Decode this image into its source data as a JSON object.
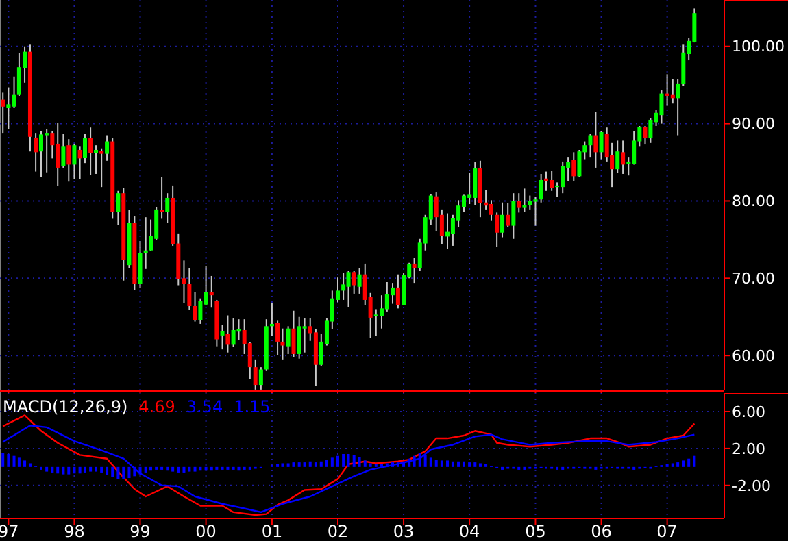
{
  "chart_data": [
    {
      "type": "candlestick",
      "xlim": [
        "1996-11-15",
        "2007-11-10"
      ],
      "ylim": [
        55.5,
        106
      ],
      "yticks": [
        {
          "value": 60,
          "label": "60.00"
        },
        {
          "value": 70,
          "label": "70.00"
        },
        {
          "value": 80,
          "label": "80.00"
        },
        {
          "value": 90,
          "label": "90.00"
        },
        {
          "value": 100,
          "label": "100.00"
        }
      ],
      "xticks": [
        {
          "value": "1997-01",
          "label": null
        },
        {
          "value": "1998-01",
          "label": null
        },
        {
          "value": "1999-01",
          "label": null
        },
        {
          "value": "2000-01",
          "label": null
        },
        {
          "value": "2001-01",
          "label": null
        },
        {
          "value": "2002-01",
          "label": null
        },
        {
          "value": "2003-01",
          "label": null
        },
        {
          "value": "2004-01",
          "label": null
        },
        {
          "value": "2005-01",
          "label": null
        },
        {
          "value": "2006-01",
          "label": null
        },
        {
          "value": "2007-01",
          "label": null
        }
      ],
      "tick_labels": "y",
      "grid": true,
      "x": [
        "1996-12",
        "1997-01",
        "1997-02",
        "1997-03",
        "1997-04",
        "1997-05",
        "1997-06",
        "1997-07",
        "1997-08",
        "1997-09",
        "1997-10",
        "1997-11",
        "1997-12",
        "1998-01",
        "1998-02",
        "1998-03",
        "1998-04",
        "1998-05",
        "1998-06",
        "1998-07",
        "1998-08",
        "1998-09",
        "1998-10",
        "1998-11",
        "1998-12",
        "1999-01",
        "1999-02",
        "1999-03",
        "1999-04",
        "1999-05",
        "1999-06",
        "1999-07",
        "1999-08",
        "1999-09",
        "1999-10",
        "1999-11",
        "1999-12",
        "2000-01",
        "2000-02",
        "2000-03",
        "2000-04",
        "2000-05",
        "2000-06",
        "2000-07",
        "2000-08",
        "2000-09",
        "2000-10",
        "2000-11",
        "2000-12",
        "2001-01",
        "2001-02",
        "2001-03",
        "2001-04",
        "2001-05",
        "2001-06",
        "2001-07",
        "2001-08",
        "2001-09",
        "2001-10",
        "2001-11",
        "2001-12",
        "2002-01",
        "2002-02",
        "2002-03",
        "2002-04",
        "2002-05",
        "2002-06",
        "2002-07",
        "2002-08",
        "2002-09",
        "2002-10",
        "2002-11",
        "2002-12",
        "2003-01",
        "2003-02",
        "2003-03",
        "2003-04",
        "2003-05",
        "2003-06",
        "2003-07",
        "2003-08",
        "2003-09",
        "2003-10",
        "2003-11",
        "2003-12",
        "2004-01",
        "2004-02",
        "2004-03",
        "2004-04",
        "2004-05",
        "2004-06",
        "2004-07",
        "2004-08",
        "2004-09",
        "2004-10",
        "2004-11",
        "2004-12",
        "2005-01",
        "2005-02",
        "2005-03",
        "2005-04",
        "2005-05",
        "2005-06",
        "2005-07",
        "2005-08",
        "2005-09",
        "2005-10",
        "2005-11",
        "2005-12",
        "2006-01",
        "2006-02",
        "2006-03",
        "2006-04",
        "2006-05",
        "2006-06",
        "2006-07",
        "2006-08",
        "2006-09",
        "2006-10",
        "2006-11",
        "2006-12",
        "2007-01",
        "2007-02",
        "2007-03",
        "2007-04",
        "2007-05",
        "2007-06"
      ],
      "ohlc": [
        [
          93.1,
          94,
          88.8,
          92.2
        ],
        [
          92,
          94.7,
          89.3,
          92.5
        ],
        [
          92.2,
          96.1,
          92,
          93.8
        ],
        [
          93.8,
          99.1,
          93.6,
          97.3
        ],
        [
          97.2,
          100,
          95.3,
          99.3
        ],
        [
          99.3,
          100.3,
          86.4,
          88.3
        ],
        [
          88.2,
          88.8,
          83.8,
          86.3
        ],
        [
          86.4,
          89,
          83.1,
          88.6
        ],
        [
          88.5,
          89.3,
          83.7,
          88.8
        ],
        [
          88.8,
          89,
          85.5,
          87.2
        ],
        [
          87.4,
          90.1,
          81.9,
          84.3
        ],
        [
          84.5,
          88.7,
          84.3,
          87.1
        ],
        [
          87.2,
          88,
          82.5,
          84.7
        ],
        [
          84.7,
          87.4,
          82.8,
          87.2
        ],
        [
          86.6,
          87.1,
          82.8,
          85.5
        ],
        [
          85.6,
          88.7,
          84.9,
          88.1
        ],
        [
          88.1,
          89.5,
          83.4,
          86.2
        ],
        [
          86.2,
          87.2,
          83.5,
          86.6
        ],
        [
          86.5,
          86.8,
          81.8,
          86.1
        ],
        [
          86.1,
          88.5,
          85.2,
          87.7
        ],
        [
          87.7,
          88.1,
          77.7,
          78.6
        ],
        [
          78.6,
          81.3,
          76.9,
          81
        ],
        [
          81,
          81.7,
          69.7,
          72.4
        ],
        [
          71.7,
          78.8,
          71.3,
          77.2
        ],
        [
          77.2,
          78,
          68.5,
          69.3
        ],
        [
          69.3,
          74.8,
          68.7,
          73.3
        ],
        [
          73.3,
          77.9,
          71.2,
          73.6
        ],
        [
          73.6,
          77.6,
          73.5,
          75.5
        ],
        [
          75.1,
          79.2,
          75,
          78.9
        ],
        [
          78.8,
          83.1,
          77.7,
          78.6
        ],
        [
          78.6,
          81,
          77.2,
          80.4
        ],
        [
          80.4,
          82,
          74.2,
          74.4
        ],
        [
          74.5,
          75.8,
          69.1,
          69.9
        ],
        [
          70,
          72.3,
          66.8,
          69.3
        ],
        [
          69.3,
          71.3,
          65.9,
          66.4
        ],
        [
          66.4,
          68.2,
          64.4,
          64.6
        ],
        [
          64.6,
          67.4,
          64.1,
          67.1
        ],
        [
          66.6,
          71.6,
          66.5,
          68.2
        ],
        [
          68.2,
          70.3,
          66.2,
          67.8
        ],
        [
          67.1,
          67.2,
          61.2,
          62.1
        ],
        [
          62.6,
          64,
          60.8,
          63.2
        ],
        [
          62.8,
          65.2,
          60.4,
          61.4
        ],
        [
          61.4,
          64.8,
          61.1,
          63.3
        ],
        [
          63.1,
          64.7,
          62,
          63.4
        ],
        [
          63.3,
          64.7,
          60.2,
          61.5
        ],
        [
          61.6,
          61.7,
          57,
          58.5
        ],
        [
          58.5,
          59.5,
          55.6,
          56.2
        ],
        [
          56.2,
          58.5,
          55.6,
          58.2
        ],
        [
          58.2,
          64.7,
          58,
          63.8
        ],
        [
          63.8,
          66.8,
          62.5,
          64.1
        ],
        [
          64.2,
          64.5,
          60.1,
          61.8
        ],
        [
          61.8,
          63.5,
          59.5,
          61.3
        ],
        [
          61.2,
          63.8,
          60.2,
          63.5
        ],
        [
          63.5,
          65.8,
          59.8,
          60.2
        ],
        [
          60.2,
          65,
          59.6,
          63.8
        ],
        [
          63.5,
          64.8,
          60.4,
          63.8
        ],
        [
          63.8,
          64.8,
          61.9,
          62.9
        ],
        [
          63,
          63.4,
          56.1,
          58.8
        ],
        [
          58.8,
          62.8,
          58.6,
          61.8
        ],
        [
          61.5,
          64.8,
          61.3,
          64.5
        ],
        [
          64.4,
          68.4,
          63.4,
          67.4
        ],
        [
          67.2,
          70.1,
          66.9,
          68.4
        ],
        [
          68.4,
          70.7,
          67.2,
          69.2
        ],
        [
          68.9,
          71,
          66.3,
          70.8
        ],
        [
          70.8,
          71,
          68,
          69.1
        ],
        [
          68.9,
          71.3,
          68,
          70.5
        ],
        [
          70.5,
          71.9,
          66.5,
          67.2
        ],
        [
          67.6,
          68.1,
          62.3,
          64.9
        ],
        [
          65.1,
          66,
          62.5,
          65.3
        ],
        [
          65.1,
          67.8,
          63.5,
          66.1
        ],
        [
          66,
          69.5,
          65.7,
          67.9
        ],
        [
          67.8,
          69.4,
          66.7,
          68.8
        ],
        [
          68.8,
          70.5,
          66.1,
          66.5
        ],
        [
          66.5,
          70.7,
          66.5,
          70.4
        ],
        [
          70.1,
          72,
          70,
          71.9
        ],
        [
          71.9,
          72.6,
          69.4,
          71.3
        ],
        [
          71.3,
          75.1,
          71,
          74.6
        ],
        [
          74.5,
          78.2,
          73.6,
          77.9
        ],
        [
          77.6,
          80.9,
          76.9,
          80.7
        ],
        [
          80.6,
          81.1,
          76.1,
          77.9
        ],
        [
          78.2,
          78.9,
          74.4,
          75.5
        ],
        [
          75.4,
          78.4,
          73.8,
          76
        ],
        [
          75.7,
          78.2,
          74.2,
          77.8
        ],
        [
          77.5,
          80.1,
          76.6,
          79.4
        ],
        [
          79.2,
          80.8,
          78.6,
          80.7
        ],
        [
          80.4,
          83.6,
          79.6,
          80.8
        ],
        [
          80.4,
          85,
          79.5,
          84.2
        ],
        [
          84.2,
          85.2,
          77.9,
          79.7
        ],
        [
          79.8,
          81.4,
          78.9,
          79.4
        ],
        [
          79.6,
          80.1,
          77.5,
          78.2
        ],
        [
          78.2,
          78.5,
          74.1,
          75.9
        ],
        [
          75.9,
          79.8,
          75.3,
          78.2
        ],
        [
          78.2,
          79.7,
          76.6,
          76.8
        ],
        [
          76.8,
          81,
          75.1,
          80
        ],
        [
          80,
          81,
          78.5,
          79.1
        ],
        [
          79.1,
          81.6,
          78.6,
          79.5
        ],
        [
          79.5,
          80.7,
          78.9,
          80
        ],
        [
          79.9,
          80.5,
          76.8,
          80.2
        ],
        [
          80.2,
          83.5,
          79.8,
          82.7
        ],
        [
          82.9,
          83.8,
          81.3,
          82.6
        ],
        [
          82.7,
          83.9,
          81.3,
          81.7
        ],
        [
          81.8,
          82.4,
          80.5,
          82
        ],
        [
          81.8,
          85.1,
          81,
          84.5
        ],
        [
          84.3,
          85.7,
          82.6,
          85
        ],
        [
          85.3,
          86.3,
          82.6,
          83.2
        ],
        [
          83.2,
          86.6,
          83.1,
          86.4
        ],
        [
          86.3,
          87.7,
          85.4,
          87.2
        ],
        [
          87.2,
          88.7,
          85.7,
          88.5
        ],
        [
          88.5,
          91.5,
          84.3,
          86.3
        ],
        [
          86.3,
          89,
          85.4,
          88.9
        ],
        [
          88.7,
          89.5,
          85.1,
          85.7
        ],
        [
          85.9,
          87.5,
          81.8,
          84.1
        ],
        [
          84.1,
          87.8,
          83.6,
          86.4
        ],
        [
          86.3,
          87.8,
          83.5,
          84.7
        ],
        [
          84.8,
          85.7,
          83.3,
          85.1
        ],
        [
          84.8,
          89,
          84.7,
          87.8
        ],
        [
          87.7,
          89.7,
          87.1,
          89.6
        ],
        [
          89.6,
          89.7,
          87.3,
          88.1
        ],
        [
          88.1,
          90.7,
          87.5,
          90.5
        ],
        [
          90.2,
          91.8,
          89.7,
          91.4
        ],
        [
          91.1,
          94.3,
          90,
          93.9
        ],
        [
          93.9,
          96.4,
          92.3,
          93.6
        ],
        [
          93.8,
          95.8,
          92.6,
          93.3
        ],
        [
          93.3,
          95.8,
          88.5,
          95.2
        ],
        [
          95.1,
          100.3,
          94.9,
          99.2
        ],
        [
          99,
          101.1,
          98.2,
          100.7
        ],
        [
          100.6,
          104.9,
          100.5,
          104.3
        ]
      ]
    },
    {
      "type": "line",
      "title": "MACD(12,26,9)",
      "annotations": [
        "4.69",
        "3.54",
        "1.15"
      ],
      "xlim": [
        "1996-11-15",
        "2007-11-10"
      ],
      "ylim": [
        -5.5,
        8
      ],
      "yticks": [
        {
          "value": 6,
          "label": "6.00"
        },
        {
          "value": 2,
          "label": "2.00"
        },
        {
          "value": -2,
          "label": "-2.00"
        }
      ],
      "xticks": [
        {
          "value": "1997-01",
          "label": "97"
        },
        {
          "value": "1998-01",
          "label": "98"
        },
        {
          "value": "1999-01",
          "label": "99"
        },
        {
          "value": "2000-01",
          "label": "00"
        },
        {
          "value": "2001-01",
          "label": "01"
        },
        {
          "value": "2002-01",
          "label": "02"
        },
        {
          "value": "2003-01",
          "label": "03"
        },
        {
          "value": "2004-01",
          "label": "04"
        },
        {
          "value": "2005-01",
          "label": "05"
        },
        {
          "value": "2006-01",
          "label": "06"
        },
        {
          "value": "2007-01",
          "label": "07"
        }
      ],
      "grid": true,
      "series": [
        {
          "type": "line",
          "color": "#ff0000",
          "x": [
            "1996-12",
            "1997-04",
            "1997-07",
            "1997-10",
            "1998-02",
            "1998-07",
            "1998-09",
            "1998-12",
            "1999-02",
            "1999-06",
            "1999-09",
            "1999-12",
            "2000-04",
            "2000-06",
            "2000-10",
            "2000-12",
            "2001-02",
            "2001-04",
            "2001-07",
            "2001-10",
            "2002-01",
            "2002-03",
            "2002-06",
            "2002-08",
            "2002-12",
            "2003-02",
            "2003-05",
            "2003-07",
            "2003-09",
            "2003-12",
            "2004-02",
            "2004-05",
            "2004-06",
            "2004-08",
            "2004-12",
            "2005-04",
            "2005-07",
            "2005-11",
            "2006-02",
            "2006-04",
            "2006-06",
            "2006-10",
            "2007-01",
            "2007-04",
            "2007-06"
          ],
          "values": [
            4.4,
            5.6,
            3.9,
            2.6,
            1.3,
            0.9,
            -0.5,
            -2.4,
            -3.2,
            -2.1,
            -3.2,
            -4.2,
            -4.2,
            -4.9,
            -5.2,
            -5.1,
            -4.1,
            -3.6,
            -2.5,
            -2.4,
            -1.3,
            0.3,
            0.6,
            0.4,
            0.6,
            0.8,
            1.7,
            3.1,
            3.1,
            3.4,
            3.9,
            3.5,
            2.6,
            2.4,
            2.2,
            2.4,
            2.6,
            3.1,
            3.1,
            2.7,
            2.2,
            2.4,
            3.1,
            3.4,
            4.7
          ]
        },
        {
          "type": "line",
          "color": "#0000ff",
          "x": [
            "1996-12",
            "1997-05",
            "1997-08",
            "1998-01",
            "1998-06",
            "1998-10",
            "1999-01",
            "1999-05",
            "1999-08",
            "1999-11",
            "2000-04",
            "2000-08",
            "2000-11",
            "2001-03",
            "2001-08",
            "2001-12",
            "2002-04",
            "2002-07",
            "2002-11",
            "2003-04",
            "2003-06",
            "2003-10",
            "2004-02",
            "2004-05",
            "2004-07",
            "2004-12",
            "2005-04",
            "2005-10",
            "2006-02",
            "2006-06",
            "2006-11",
            "2007-03",
            "2007-06"
          ],
          "values": [
            2.7,
            4.5,
            4.3,
            2.8,
            1.8,
            0.9,
            -0.7,
            -2,
            -2.1,
            -3.2,
            -4,
            -4.5,
            -4.9,
            -4,
            -3.2,
            -2.1,
            -1,
            -0.3,
            0.2,
            0.9,
            1.9,
            2.4,
            3.3,
            3.5,
            3,
            2.4,
            2.6,
            2.8,
            2.8,
            2.4,
            2.7,
            3.1,
            3.5
          ]
        },
        {
          "type": "bar",
          "color": "#0000ff",
          "x": [
            "1996-12",
            "1997-01",
            "1997-02",
            "1997-03",
            "1997-04",
            "1997-05",
            "1997-06",
            "1997-07",
            "1997-08",
            "1997-09",
            "1997-10",
            "1997-11",
            "1997-12",
            "1998-01",
            "1998-02",
            "1998-03",
            "1998-04",
            "1998-05",
            "1998-06",
            "1998-07",
            "1998-08",
            "1998-09",
            "1998-10",
            "1998-11",
            "1998-12",
            "1999-01",
            "1999-02",
            "1999-03",
            "1999-04",
            "1999-05",
            "1999-06",
            "1999-07",
            "1999-08",
            "1999-09",
            "1999-10",
            "1999-11",
            "1999-12",
            "2000-01",
            "2000-02",
            "2000-03",
            "2000-04",
            "2000-05",
            "2000-06",
            "2000-07",
            "2000-08",
            "2000-09",
            "2000-10",
            "2000-11",
            "2000-12",
            "2001-01",
            "2001-02",
            "2001-03",
            "2001-04",
            "2001-05",
            "2001-06",
            "2001-07",
            "2001-08",
            "2001-09",
            "2001-10",
            "2001-11",
            "2001-12",
            "2002-01",
            "2002-02",
            "2002-03",
            "2002-04",
            "2002-05",
            "2002-06",
            "2002-07",
            "2002-08",
            "2002-09",
            "2002-10",
            "2002-11",
            "2002-12",
            "2003-01",
            "2003-02",
            "2003-03",
            "2003-04",
            "2003-05",
            "2003-06",
            "2003-07",
            "2003-08",
            "2003-09",
            "2003-10",
            "2003-11",
            "2003-12",
            "2004-01",
            "2004-02",
            "2004-03",
            "2004-04",
            "2004-05",
            "2004-06",
            "2004-07",
            "2004-08",
            "2004-09",
            "2004-10",
            "2004-11",
            "2004-12",
            "2005-01",
            "2005-02",
            "2005-03",
            "2005-04",
            "2005-05",
            "2005-06",
            "2005-07",
            "2005-08",
            "2005-09",
            "2005-10",
            "2005-11",
            "2005-12",
            "2006-01",
            "2006-02",
            "2006-03",
            "2006-04",
            "2006-05",
            "2006-06",
            "2006-07",
            "2006-08",
            "2006-09",
            "2006-10",
            "2006-11",
            "2006-12",
            "2007-01",
            "2007-02",
            "2007-03",
            "2007-04",
            "2007-05",
            "2007-06"
          ],
          "values": [
            1.5,
            1.4,
            1.2,
            1,
            0.7,
            0.4,
            0.1,
            -0.3,
            -0.5,
            -0.6,
            -0.7,
            -0.8,
            -0.8,
            -0.7,
            -0.7,
            -0.6,
            -0.5,
            -0.5,
            -0.6,
            -0.9,
            -1.1,
            -1.3,
            -1.3,
            -1.2,
            -1,
            -0.8,
            -0.6,
            -0.4,
            -0.3,
            -0.3,
            -0.4,
            -0.5,
            -0.6,
            -0.6,
            -0.5,
            -0.5,
            -0.4,
            -0.4,
            -0.4,
            -0.3,
            -0.3,
            -0.3,
            -0.3,
            -0.4,
            -0.3,
            -0.3,
            -0.2,
            -0.1,
            0,
            0.2,
            0.3,
            0.4,
            0.4,
            0.5,
            0.5,
            0.5,
            0.6,
            0.5,
            0.6,
            0.8,
            1,
            1.2,
            1.4,
            1.4,
            1.3,
            1.1,
            0.7,
            0.4,
            0.3,
            0.3,
            0.4,
            0.5,
            0.5,
            0.6,
            0.9,
            1.2,
            1.5,
            1.3,
            1,
            0.8,
            0.7,
            0.7,
            0.6,
            0.6,
            0.6,
            0.5,
            0.5,
            0.4,
            0.3,
            0.1,
            -0.1,
            -0.3,
            -0.2,
            -0.2,
            -0.3,
            -0.3,
            -0.2,
            -0.2,
            -0.1,
            -0.2,
            -0.2,
            -0.3,
            -0.3,
            -0.2,
            -0.2,
            -0.1,
            -0.2,
            -0.2,
            -0.3,
            -0.2,
            -0.2,
            -0.1,
            -0.2,
            -0.2,
            -0.2,
            -0.3,
            -0.2,
            -0.1,
            -0.2,
            0.1,
            0.2,
            0.3,
            0.4,
            0.5,
            0.7,
            0.9,
            1.2
          ]
        }
      ]
    }
  ]
}
